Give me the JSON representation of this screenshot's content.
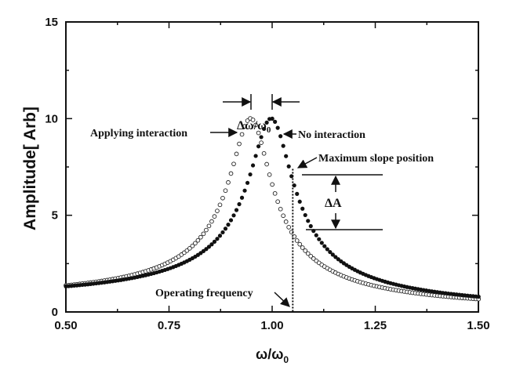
{
  "chart_data": {
    "type": "scatter",
    "xlabel": "ω/ω",
    "xlabel_sub": "0",
    "ylabel": "Amplitude[ Arb]",
    "xlim": [
      0.5,
      1.5
    ],
    "ylim": [
      0,
      15
    ],
    "x_ticks": [
      "0.50",
      "0.75",
      "1.00",
      "1.25",
      "1.50"
    ],
    "y_ticks": [
      "0",
      "5",
      "10",
      "15"
    ],
    "grid": false,
    "series": [
      {
        "marker": "filled-circle",
        "center": 1.0,
        "peak": 10.0,
        "q": 10.05,
        "x_start": 0.5,
        "x_end": 1.5,
        "step": 0.00667
      },
      {
        "marker": "open-circle",
        "center": 0.95,
        "peak": 10.0,
        "q": 10.05,
        "x_start": 0.5,
        "x_end": 1.5,
        "step": 0.00667
      }
    ],
    "operating_frequency": 1.05,
    "annotations": {
      "delta_omega": "Δω/ω",
      "delta_omega_sub": "0",
      "applying": "Applying interaction",
      "no_interaction": "No interaction",
      "max_slope": "Maximum slope position",
      "delta_a": "ΔA",
      "operating": "Operating frequency"
    }
  }
}
